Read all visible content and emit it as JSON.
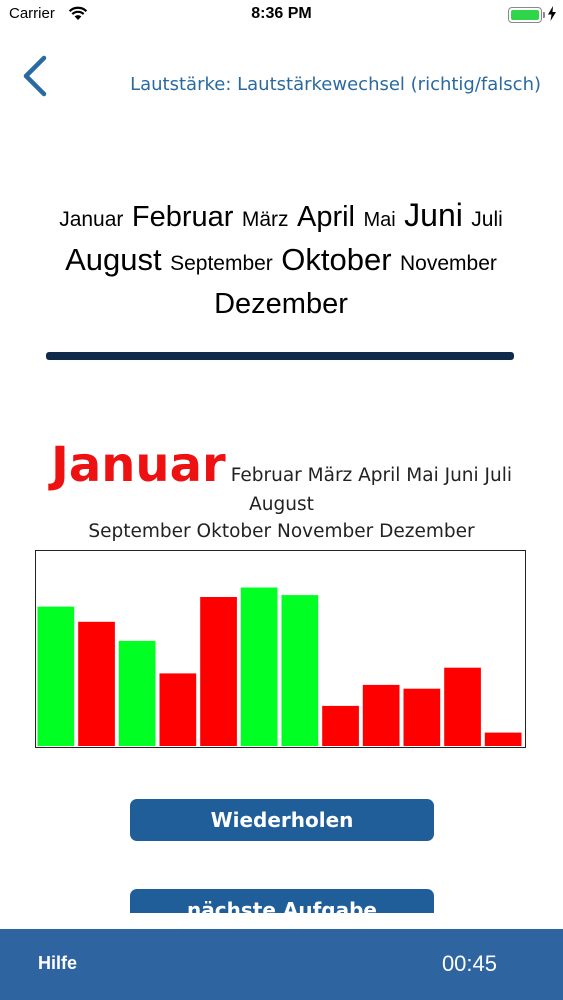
{
  "status_bar": {
    "carrier": "Carrier",
    "time": "8:36 PM",
    "battery_color": "#2fd64a"
  },
  "nav": {
    "back_icon": "chevron-left-icon",
    "title": "Lautstärke: Lautstärkewechsel (richtig/falsch)"
  },
  "cloud_1": {
    "months": [
      {
        "label": "Januar",
        "size": 21
      },
      {
        "label": "Februar",
        "size": 29
      },
      {
        "label": "März",
        "size": 21
      },
      {
        "label": "April",
        "size": 29
      },
      {
        "label": "Mai",
        "size": 20
      },
      {
        "label": "Juni",
        "size": 32
      },
      {
        "label": "Juli",
        "size": 21
      },
      {
        "label": "August",
        "size": 31
      },
      {
        "label": "September",
        "size": 21
      },
      {
        "label": "Oktober",
        "size": 31
      },
      {
        "label": "November",
        "size": 21
      },
      {
        "label": "Dezember",
        "size": 29
      }
    ]
  },
  "cloud_2": {
    "highlight": "Januar",
    "line_1": "Februar März April Mai Juni Juli August",
    "line_2": "September Oktober November Dezember"
  },
  "chart_data": {
    "type": "bar",
    "ylim": [
      0,
      100
    ],
    "values": [
      73,
      65,
      55,
      38,
      78,
      83,
      79,
      21,
      32,
      30,
      41,
      7
    ],
    "colors": [
      "#00ff22",
      "#ff0000",
      "#00ff22",
      "#ff0000",
      "#ff0000",
      "#00ff22",
      "#00ff22",
      "#ff0000",
      "#ff0000",
      "#ff0000",
      "#ff0000",
      "#ff0000"
    ]
  },
  "buttons": {
    "repeat": "Wiederholen",
    "next": "nächste Aufgabe"
  },
  "bottom_bar": {
    "help": "Hilfe",
    "timer": "00:45"
  }
}
